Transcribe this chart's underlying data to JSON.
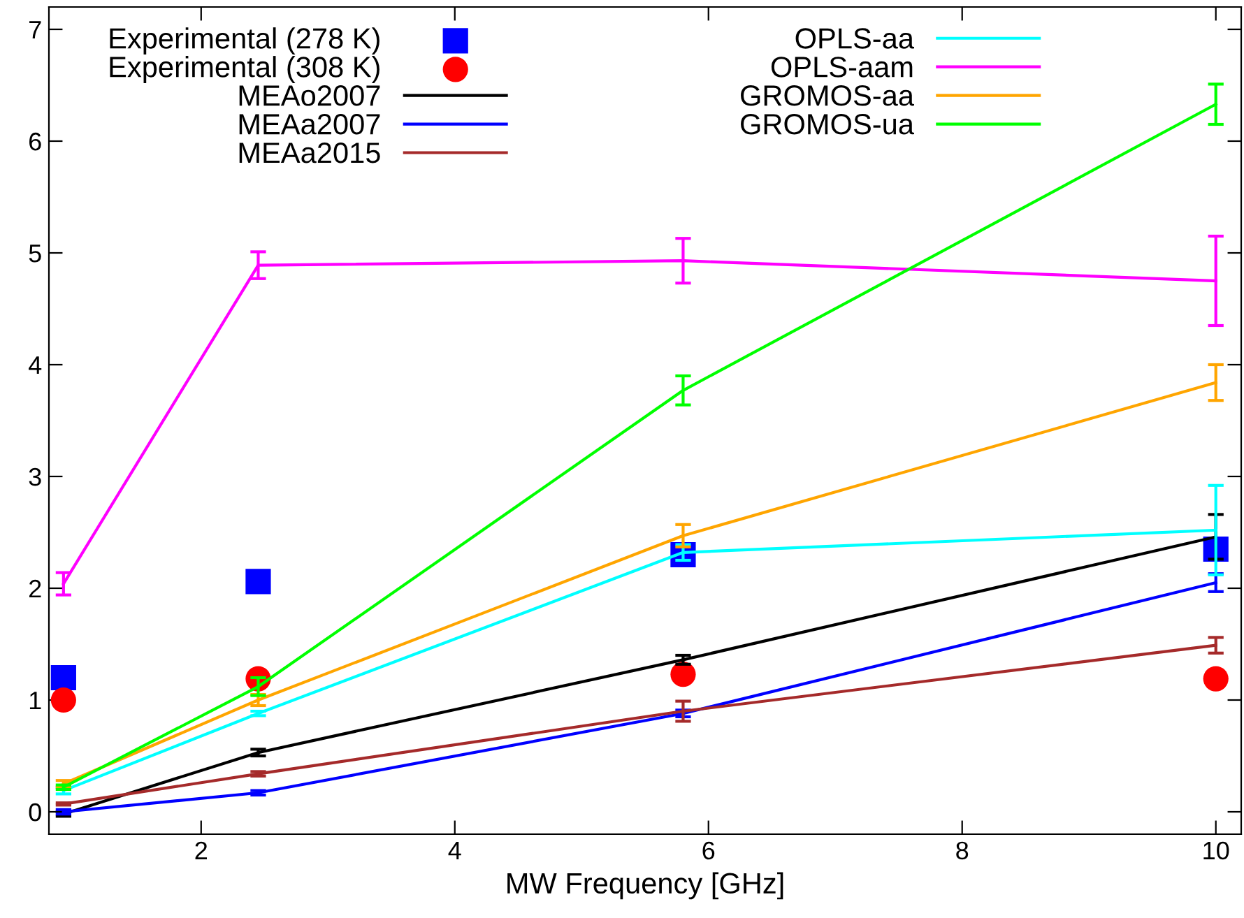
{
  "chart_data": {
    "type": "line",
    "xlabel": "MW Frequency [GHz]",
    "xlim": [
      0.8,
      10.2
    ],
    "ylim": [
      -0.2,
      7.2
    ],
    "xticks": [
      2,
      4,
      6,
      8,
      10
    ],
    "yticks": [
      0,
      1,
      2,
      3,
      4,
      5,
      6,
      7
    ],
    "grid": false,
    "legend": "top",
    "x": [
      0.915,
      2.45,
      5.8,
      10
    ],
    "series": [
      {
        "name": "Experimental (278 K)",
        "type": "scatter",
        "marker": "square",
        "color": "#0000ff",
        "values": [
          1.2,
          2.06,
          2.3,
          2.35
        ]
      },
      {
        "name": "Experimental (308 K)",
        "type": "scatter",
        "marker": "circle",
        "color": "#ff0000",
        "values": [
          1.0,
          1.19,
          1.23,
          1.19
        ]
      },
      {
        "name": "MEAo2007",
        "color": "#000000",
        "values": [
          -0.02,
          0.53,
          1.36,
          2.46
        ],
        "errors": [
          0.02,
          0.03,
          0.04,
          0.2
        ]
      },
      {
        "name": "MEAa2007",
        "color": "#0000ff",
        "values": [
          0.0,
          0.17,
          0.88,
          2.05
        ],
        "errors": [
          0.02,
          0.02,
          0.03,
          0.08
        ]
      },
      {
        "name": "MEAa2015",
        "color": "#a52a2a",
        "values": [
          0.07,
          0.34,
          0.9,
          1.49
        ],
        "errors": [
          0.01,
          0.02,
          0.09,
          0.07
        ]
      },
      {
        "name": "OPLS-aa",
        "color": "#00ffff",
        "values": [
          0.19,
          0.88,
          2.32,
          2.52
        ],
        "errors": [
          0.03,
          0.02,
          0.07,
          0.4
        ]
      },
      {
        "name": "OPLS-aam",
        "color": "#ff00ff",
        "values": [
          2.04,
          4.89,
          4.93,
          4.75
        ],
        "errors": [
          0.1,
          0.12,
          0.2,
          0.4
        ]
      },
      {
        "name": "GROMOS-aa",
        "color": "#ffa500",
        "values": [
          0.25,
          1.0,
          2.47,
          3.84
        ],
        "errors": [
          0.03,
          0.05,
          0.1,
          0.16
        ]
      },
      {
        "name": "GROMOS-ua",
        "color": "#00ff00",
        "values": [
          0.22,
          1.12,
          3.77,
          6.33
        ],
        "errors": [
          0.02,
          0.08,
          0.13,
          0.18
        ]
      }
    ]
  }
}
